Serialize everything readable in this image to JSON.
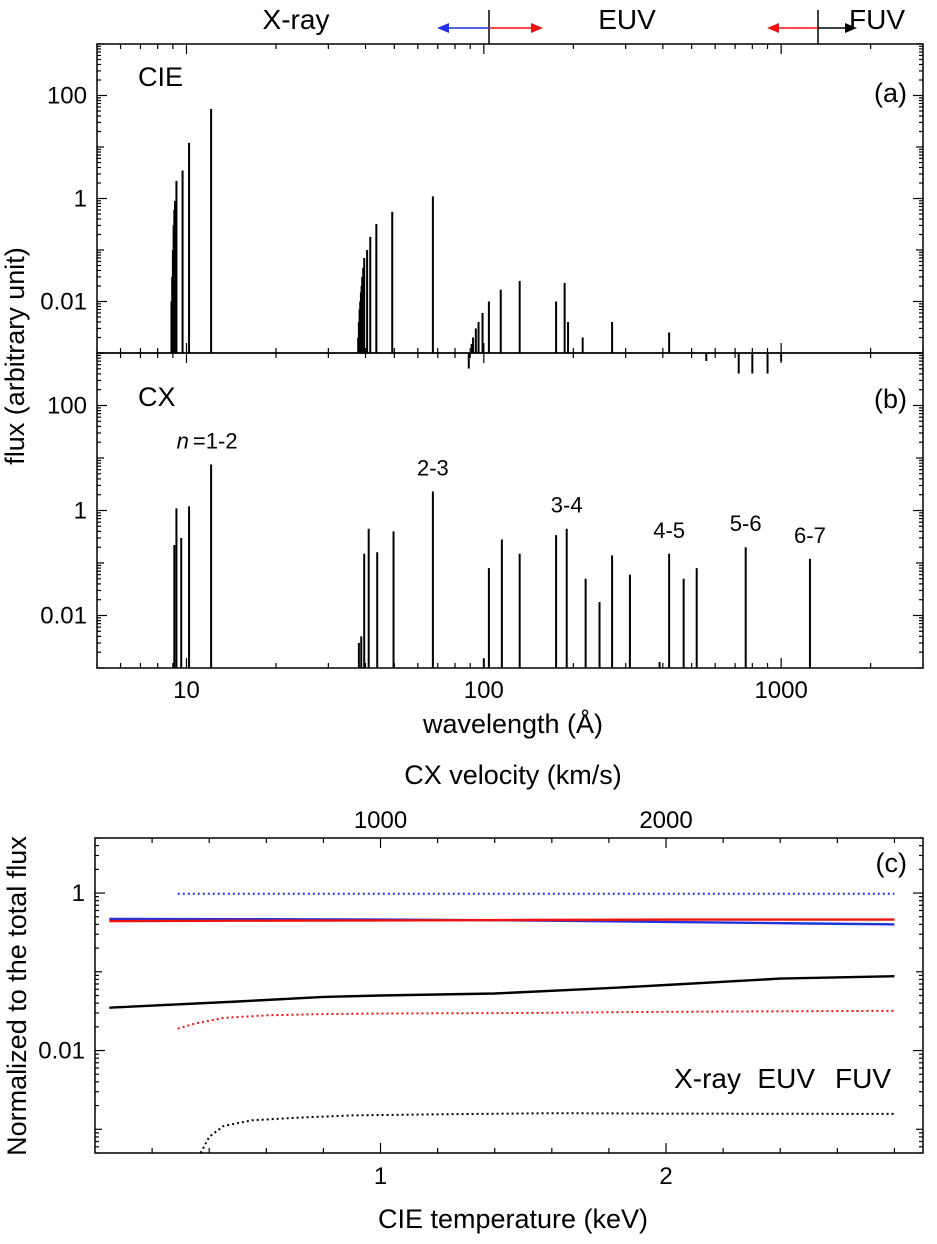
{
  "colors": {
    "xray": "#2233dd",
    "euv": "#ee1111",
    "fuv": "#000000",
    "axis": "#000000"
  },
  "bands_header": {
    "xray": "X-ray",
    "euv": "EUV",
    "fuv": "FUV"
  },
  "legend_c": {
    "xray": "X-ray",
    "euv": "EUV",
    "fuv": "FUV"
  },
  "chart_data": [
    {
      "type": "bar",
      "panel": "(a)",
      "name": "CIE",
      "xscale": "log",
      "yscale": "log",
      "xlim": [
        5,
        3000
      ],
      "ylim": [
        0.001,
        1000
      ],
      "xticks": [
        10,
        100,
        1000
      ],
      "xtick_labels": [
        "10",
        "100",
        "1000"
      ],
      "yticks": [
        0.01,
        1,
        100
      ],
      "ytick_labels": [
        "0.01",
        "1",
        "100"
      ],
      "ylabel": "flux (arbitrary unit)",
      "grid": false,
      "lines": [
        {
          "x": 8.9,
          "y": 0.01
        },
        {
          "x": 8.95,
          "y": 0.03
        },
        {
          "x": 9.0,
          "y": 0.1
        },
        {
          "x": 9.05,
          "y": 0.3
        },
        {
          "x": 9.1,
          "y": 0.6
        },
        {
          "x": 9.15,
          "y": 0.9
        },
        {
          "x": 9.25,
          "y": 2.2
        },
        {
          "x": 9.7,
          "y": 3.5
        },
        {
          "x": 10.2,
          "y": 12
        },
        {
          "x": 12.1,
          "y": 55
        },
        {
          "x": 37.8,
          "y": 0.002
        },
        {
          "x": 38.0,
          "y": 0.004
        },
        {
          "x": 38.2,
          "y": 0.007
        },
        {
          "x": 38.4,
          "y": 0.01
        },
        {
          "x": 38.6,
          "y": 0.015
        },
        {
          "x": 38.8,
          "y": 0.02
        },
        {
          "x": 39.0,
          "y": 0.03
        },
        {
          "x": 39.3,
          "y": 0.045
        },
        {
          "x": 39.6,
          "y": 0.07
        },
        {
          "x": 40.5,
          "y": 0.1
        },
        {
          "x": 41.5,
          "y": 0.18
        },
        {
          "x": 43.5,
          "y": 0.32
        },
        {
          "x": 49.2,
          "y": 0.55
        },
        {
          "x": 67.4,
          "y": 1.1
        },
        {
          "x": 89,
          "y": 0.0005
        },
        {
          "x": 90,
          "y": 0.001
        },
        {
          "x": 91,
          "y": 0.0015
        },
        {
          "x": 92,
          "y": 0.002
        },
        {
          "x": 94,
          "y": 0.003
        },
        {
          "x": 96,
          "y": 0.004
        },
        {
          "x": 99,
          "y": 0.006
        },
        {
          "x": 104,
          "y": 0.01
        },
        {
          "x": 114,
          "y": 0.017
        },
        {
          "x": 132,
          "y": 0.025
        },
        {
          "x": 175,
          "y": 0.01
        },
        {
          "x": 187,
          "y": 0.023
        },
        {
          "x": 192,
          "y": 0.004
        },
        {
          "x": 215,
          "y": 0.002
        },
        {
          "x": 270,
          "y": 0.004
        },
        {
          "x": 420,
          "y": 0.0025
        },
        {
          "x": 560,
          "y": 0.0007
        },
        {
          "x": 720,
          "y": 0.0004
        },
        {
          "x": 800,
          "y": 0.0004
        },
        {
          "x": 900,
          "y": 0.0004
        },
        {
          "x": 1000,
          "y": 0.0007
        }
      ],
      "annotations": []
    },
    {
      "type": "bar",
      "panel": "(b)",
      "name": "CX",
      "xscale": "log",
      "yscale": "log",
      "xlim": [
        5,
        3000
      ],
      "ylim": [
        0.001,
        1000
      ],
      "xticks": [
        10,
        100,
        1000
      ],
      "xtick_labels": [
        "10",
        "100",
        "1000"
      ],
      "yticks": [
        0.01,
        1,
        100
      ],
      "ytick_labels": [
        "0.01",
        "1",
        "100"
      ],
      "xlabel": "wavelength (Å)",
      "grid": false,
      "lines": [
        {
          "x": 9.1,
          "y": 0.22
        },
        {
          "x": 9.25,
          "y": 1.1
        },
        {
          "x": 9.6,
          "y": 0.3
        },
        {
          "x": 10.2,
          "y": 1.2
        },
        {
          "x": 12.1,
          "y": 7.5
        },
        {
          "x": 38.0,
          "y": 0.003
        },
        {
          "x": 38.7,
          "y": 0.004
        },
        {
          "x": 39.6,
          "y": 0.15
        },
        {
          "x": 41.0,
          "y": 0.45
        },
        {
          "x": 43.8,
          "y": 0.16
        },
        {
          "x": 49.7,
          "y": 0.4
        },
        {
          "x": 67.4,
          "y": 2.3
        },
        {
          "x": 100,
          "y": 0.0015
        },
        {
          "x": 104,
          "y": 0.08
        },
        {
          "x": 115,
          "y": 0.28
        },
        {
          "x": 132,
          "y": 0.15
        },
        {
          "x": 175,
          "y": 0.34
        },
        {
          "x": 190,
          "y": 0.45
        },
        {
          "x": 220,
          "y": 0.05
        },
        {
          "x": 245,
          "y": 0.018
        },
        {
          "x": 270,
          "y": 0.14
        },
        {
          "x": 310,
          "y": 0.06
        },
        {
          "x": 390,
          "y": 0.0013
        },
        {
          "x": 420,
          "y": 0.15
        },
        {
          "x": 470,
          "y": 0.05
        },
        {
          "x": 520,
          "y": 0.08
        },
        {
          "x": 760,
          "y": 0.2
        },
        {
          "x": 1250,
          "y": 0.12
        }
      ],
      "annotations": [
        {
          "text": "1-2",
          "prefix": "n",
          "eq": "=",
          "x": 12.1,
          "y": 7.5
        },
        {
          "text": "2-3",
          "x": 67.4,
          "y": 2.3
        },
        {
          "text": "3-4",
          "x": 190,
          "y": 0.45
        },
        {
          "text": "4-5",
          "x": 420,
          "y": 0.15
        },
        {
          "text": "5-6",
          "x": 760,
          "y": 0.2
        },
        {
          "text": "6-7",
          "x": 1250,
          "y": 0.12
        }
      ]
    },
    {
      "type": "line",
      "panel": "(c)",
      "xlabel": "CIE temperature (keV)",
      "ylabel": "Normalized to the total flux",
      "top_axis_label": "CX velocity (km/s)",
      "xlim": [
        0,
        2.9
      ],
      "ylim": [
        0.0005,
        5
      ],
      "yscale": "log",
      "xticks": [
        1,
        2
      ],
      "xtick_labels": [
        "1",
        "2"
      ],
      "yticks": [
        0.01,
        1
      ],
      "ytick_labels": [
        "0.01",
        "1"
      ],
      "top_ticks": [
        1000,
        2000
      ],
      "top_tick_labels": [
        "1000",
        "2000"
      ],
      "grid": false,
      "legend_position": "bottom-right",
      "series": [
        {
          "group": "CIE",
          "band": "xray",
          "style": "solid",
          "x": [
            0.05,
            0.5,
            1.0,
            1.5,
            2.0,
            2.5,
            2.8
          ],
          "y": [
            0.47,
            0.465,
            0.46,
            0.45,
            0.43,
            0.41,
            0.4
          ]
        },
        {
          "group": "CIE",
          "band": "euv",
          "style": "solid",
          "x": [
            0.05,
            0.5,
            1.0,
            1.5,
            2.0,
            2.5,
            2.8
          ],
          "y": [
            0.44,
            0.445,
            0.45,
            0.455,
            0.46,
            0.46,
            0.46
          ]
        },
        {
          "group": "CIE",
          "band": "fuv",
          "style": "solid",
          "x": [
            0.05,
            0.5,
            0.8,
            1.0,
            1.4,
            1.8,
            2.0,
            2.4,
            2.8
          ],
          "y": [
            0.035,
            0.042,
            0.048,
            0.05,
            0.053,
            0.062,
            0.068,
            0.082,
            0.088
          ]
        },
        {
          "group": "CX",
          "band": "xray",
          "style": "dotted",
          "x": [
            0.29,
            0.6,
            1.0,
            1.5,
            2.0,
            2.5,
            2.8
          ],
          "y": [
            0.98,
            0.98,
            0.98,
            0.98,
            0.98,
            0.98,
            0.98
          ]
        },
        {
          "group": "CX",
          "band": "euv",
          "style": "dotted",
          "x": [
            0.29,
            0.35,
            0.45,
            0.6,
            0.8,
            1.0,
            1.5,
            2.0,
            2.8
          ],
          "y": [
            0.019,
            0.022,
            0.026,
            0.028,
            0.029,
            0.0295,
            0.03,
            0.031,
            0.032
          ]
        },
        {
          "group": "CX",
          "band": "fuv",
          "style": "dotted",
          "x": [
            0.37,
            0.4,
            0.45,
            0.55,
            0.7,
            0.9,
            1.2,
            1.6,
            2.0,
            2.8
          ],
          "y": [
            0.0005,
            0.0008,
            0.0011,
            0.0013,
            0.0014,
            0.0015,
            0.00155,
            0.0016,
            0.00158,
            0.00157
          ]
        }
      ]
    }
  ]
}
